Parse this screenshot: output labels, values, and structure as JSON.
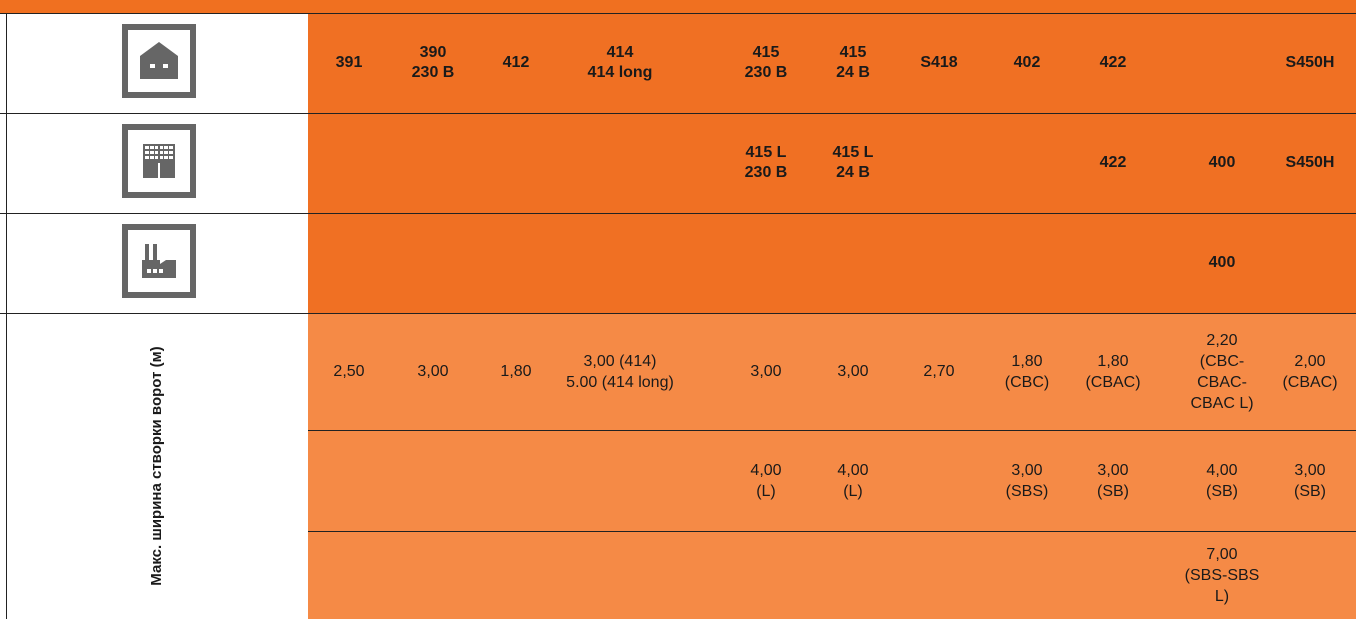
{
  "colors": {
    "top_strip": "#F07020",
    "header_orange": "#F07023",
    "data_orange": "#F58A46",
    "icon_gray": "#666666",
    "rule": "#222222"
  },
  "rows": {
    "home": {
      "icon": "house-icon",
      "cells": [
        "391",
        "390\n230 В",
        "412",
        "414\n414 long",
        "415\n230 В",
        "415\n24 В",
        "S418",
        "402",
        "422",
        "",
        "S450H"
      ]
    },
    "residential": {
      "icon": "apartment-building-icon",
      "cells": [
        "",
        "",
        "",
        "",
        "415 L\n230 В",
        "415 L\n24 В",
        "",
        "",
        "422",
        "400",
        "S450H"
      ]
    },
    "industrial": {
      "icon": "factory-icon",
      "cells": [
        "",
        "",
        "",
        "",
        "",
        "",
        "",
        "",
        "",
        "400",
        ""
      ]
    }
  },
  "width_section": {
    "label": "Макс. ширина створки ворот (м)",
    "rows": [
      [
        "2,50",
        "3,00",
        "1,80",
        "3,00 (414)\n5.00 (414 long)",
        "3,00",
        "3,00",
        "2,70",
        "1,80\n(CBC)",
        "1,80\n(CBAC)",
        "2,20\n(CBC-\nCBAC-\nCBAC L)",
        "2,00\n(CBAC)"
      ],
      [
        "",
        "",
        "",
        "",
        "4,00\n(L)",
        "4,00\n(L)",
        "",
        "3,00\n(SBS)",
        "3,00\n(SB)",
        "4,00\n(SB)",
        "3,00\n(SB)"
      ],
      [
        "",
        "",
        "",
        "",
        "",
        "",
        "",
        "",
        "",
        "7,00\n(SBS-SBS\nL)",
        ""
      ]
    ]
  }
}
